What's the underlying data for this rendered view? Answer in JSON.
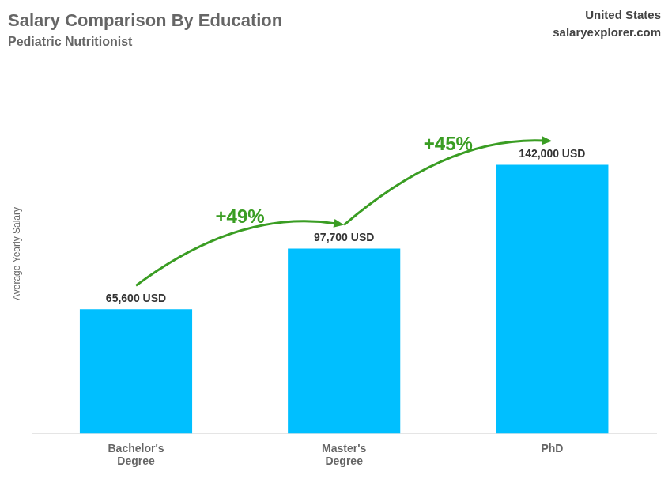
{
  "chart_data": {
    "type": "bar",
    "title": "Salary Comparison By Education",
    "subtitle": "Pediatric Nutritionist",
    "categories": [
      "Bachelor's\nDegree",
      "Master's\nDegree",
      "PhD"
    ],
    "values": [
      65600,
      97700,
      142000
    ],
    "value_labels": [
      "65,600 USD",
      "97,700 USD",
      "142,000 USD"
    ],
    "data_labels": true,
    "color": "#00BFFF",
    "ylabel": "Average Yearly Salary",
    "ylim": [
      0,
      190000
    ],
    "tick_labels": "x",
    "grid": false,
    "annotations": [
      {
        "text": "+49%",
        "between": [
          "Bachelor's\nDegree",
          "Master's\nDegree"
        ]
      },
      {
        "text": "+45%",
        "between": [
          "Master's\nDegree",
          "PhD"
        ]
      },
      {
        "text": "United States"
      },
      {
        "text": "salaryexplorer.com"
      }
    ]
  }
}
